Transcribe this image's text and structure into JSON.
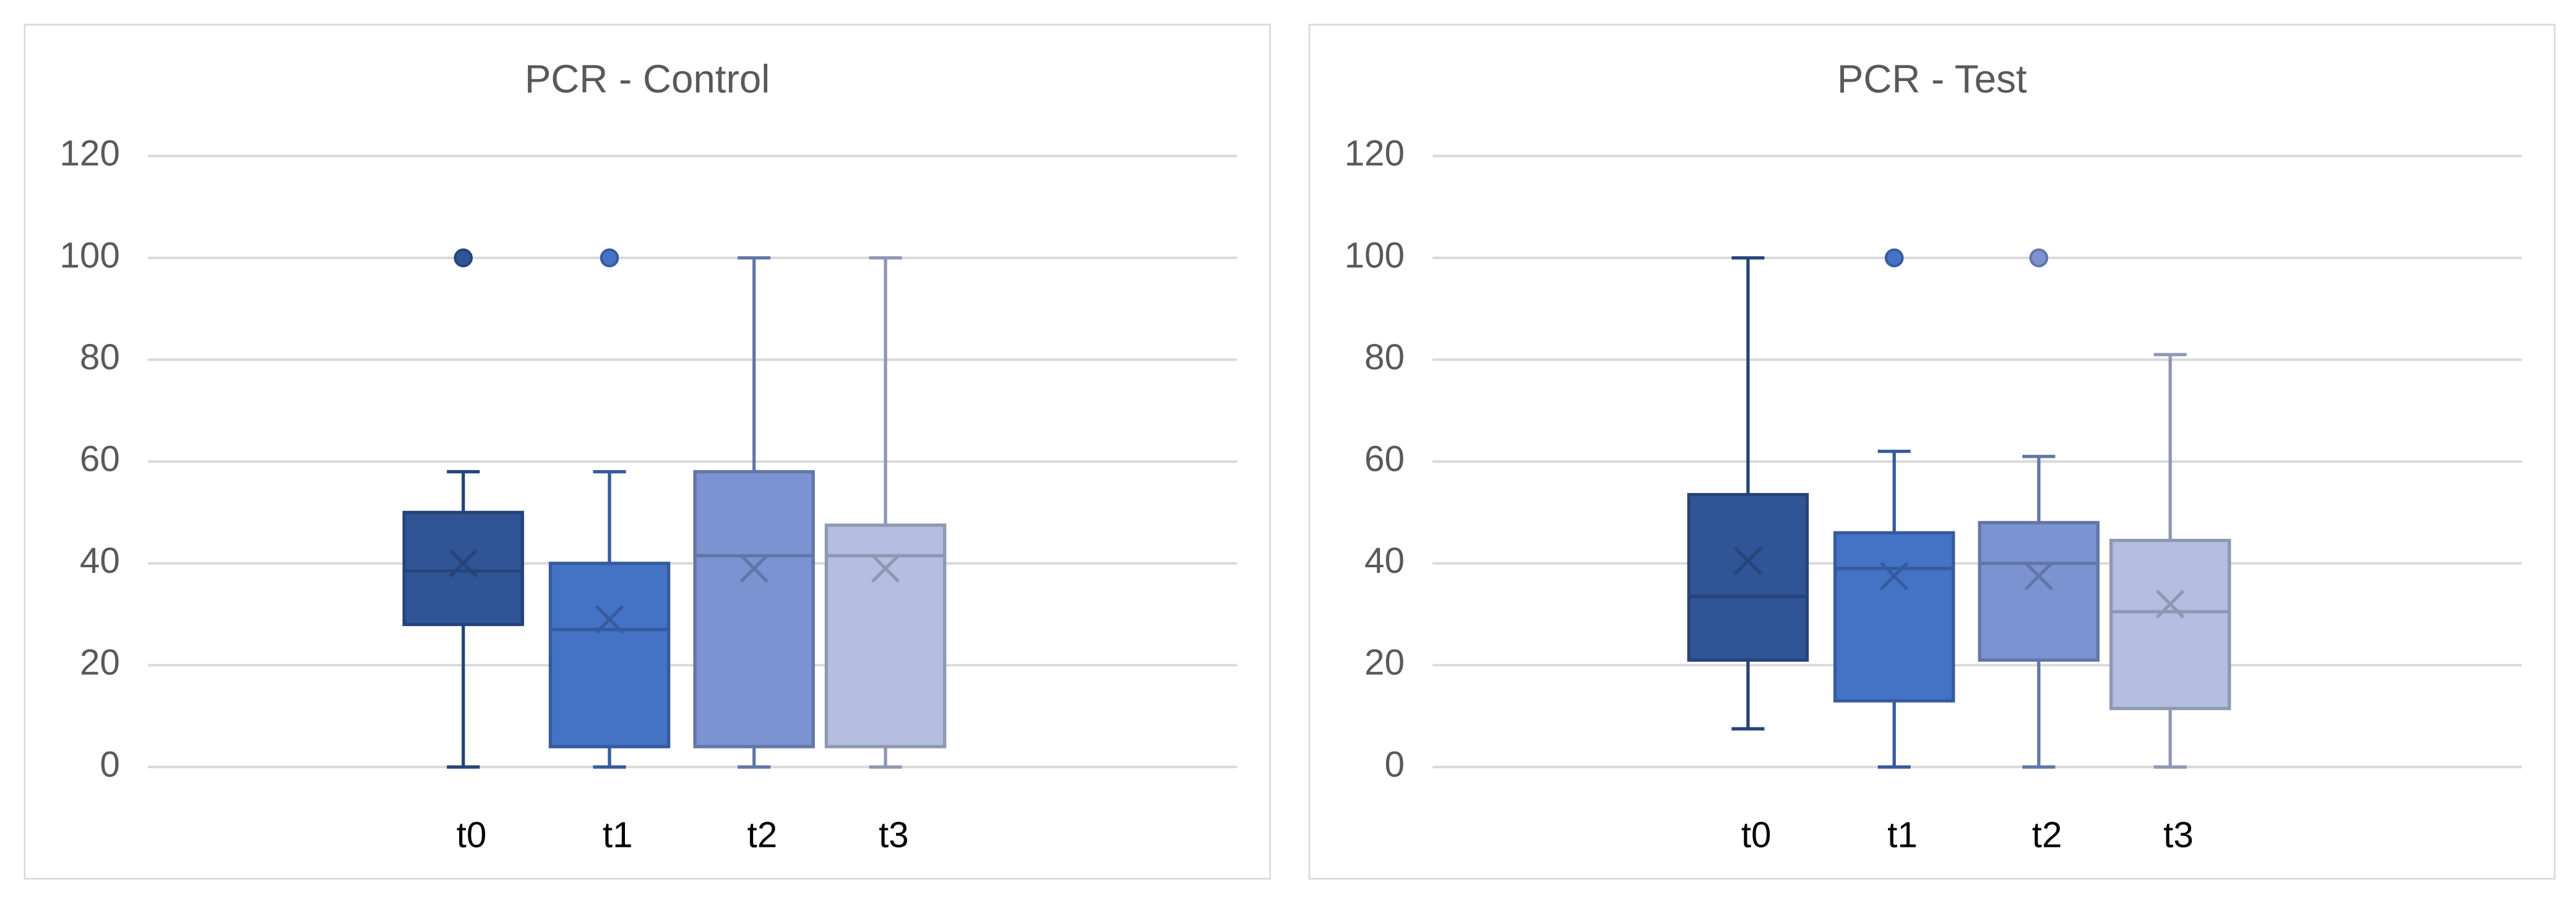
{
  "chart_data": [
    {
      "type": "box",
      "title": "PCR - Control",
      "categories": [
        "t0",
        "t1",
        "t2",
        "t3"
      ],
      "boxes": [
        {
          "min": 0,
          "q1": 28,
          "median": 38.5,
          "q3": 50,
          "max": 58,
          "mean": 40,
          "outliers": [
            100
          ],
          "color": "#2f5597"
        },
        {
          "min": 0,
          "q1": 4,
          "median": 27,
          "q3": 40,
          "max": 58,
          "mean": 29,
          "outliers": [
            100
          ],
          "color": "#4472c4"
        },
        {
          "min": 0,
          "q1": 4,
          "median": 41.5,
          "q3": 58,
          "max": 100,
          "mean": 39,
          "outliers": [],
          "color": "#7b93d1"
        },
        {
          "min": 0,
          "q1": 4,
          "median": 41.5,
          "q3": 47.5,
          "max": 100,
          "mean": 39,
          "outliers": [],
          "color": "#b3bee0"
        }
      ],
      "ylim": [
        0,
        120
      ],
      "yticks": [
        0,
        20,
        40,
        60,
        80,
        100,
        120
      ],
      "grid": true
    },
    {
      "type": "box",
      "title": "PCR - Test",
      "categories": [
        "t0",
        "t1",
        "t2",
        "t3"
      ],
      "boxes": [
        {
          "min": 7.5,
          "q1": 21,
          "median": 33.5,
          "q3": 53.5,
          "max": 100,
          "mean": 40.5,
          "outliers": [],
          "color": "#2f5597"
        },
        {
          "min": 0,
          "q1": 13,
          "median": 39,
          "q3": 46,
          "max": 62,
          "mean": 37.5,
          "outliers": [
            100
          ],
          "color": "#4472c4"
        },
        {
          "min": 0,
          "q1": 21,
          "median": 40,
          "q3": 48,
          "max": 61,
          "mean": 37.5,
          "outliers": [
            100
          ],
          "color": "#7b93d1"
        },
        {
          "min": 0,
          "q1": 11.5,
          "median": 30.5,
          "q3": 44.5,
          "max": 81,
          "mean": 32,
          "outliers": [],
          "color": "#b3bee0"
        }
      ],
      "ylim": [
        0,
        120
      ],
      "yticks": [
        0,
        20,
        40,
        60,
        80,
        100,
        120
      ],
      "grid": true
    }
  ]
}
